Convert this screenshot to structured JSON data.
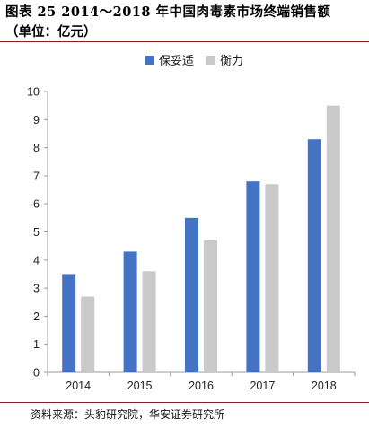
{
  "header": {
    "title": "图表 25 2014～2018 年中国肉毒素市场终端销售额",
    "subtitle": "（单位：亿元）"
  },
  "footer": {
    "source": "资料来源：头豹研究院，华安证券研究所"
  },
  "chart_data": {
    "type": "bar",
    "categories": [
      "2014",
      "2015",
      "2016",
      "2017",
      "2018"
    ],
    "series": [
      {
        "name": "保妥适",
        "values": [
          3.5,
          4.3,
          5.5,
          6.8,
          8.3
        ],
        "color": "#4472C4"
      },
      {
        "name": "衡力",
        "values": [
          2.7,
          3.6,
          4.7,
          6.7,
          9.5
        ],
        "color": "#C9C9C9"
      }
    ],
    "ylim": [
      0,
      10
    ],
    "yticks": [
      0,
      1,
      2,
      3,
      4,
      5,
      6,
      7,
      8,
      9,
      10
    ],
    "grid": false,
    "legend": "top-center"
  }
}
